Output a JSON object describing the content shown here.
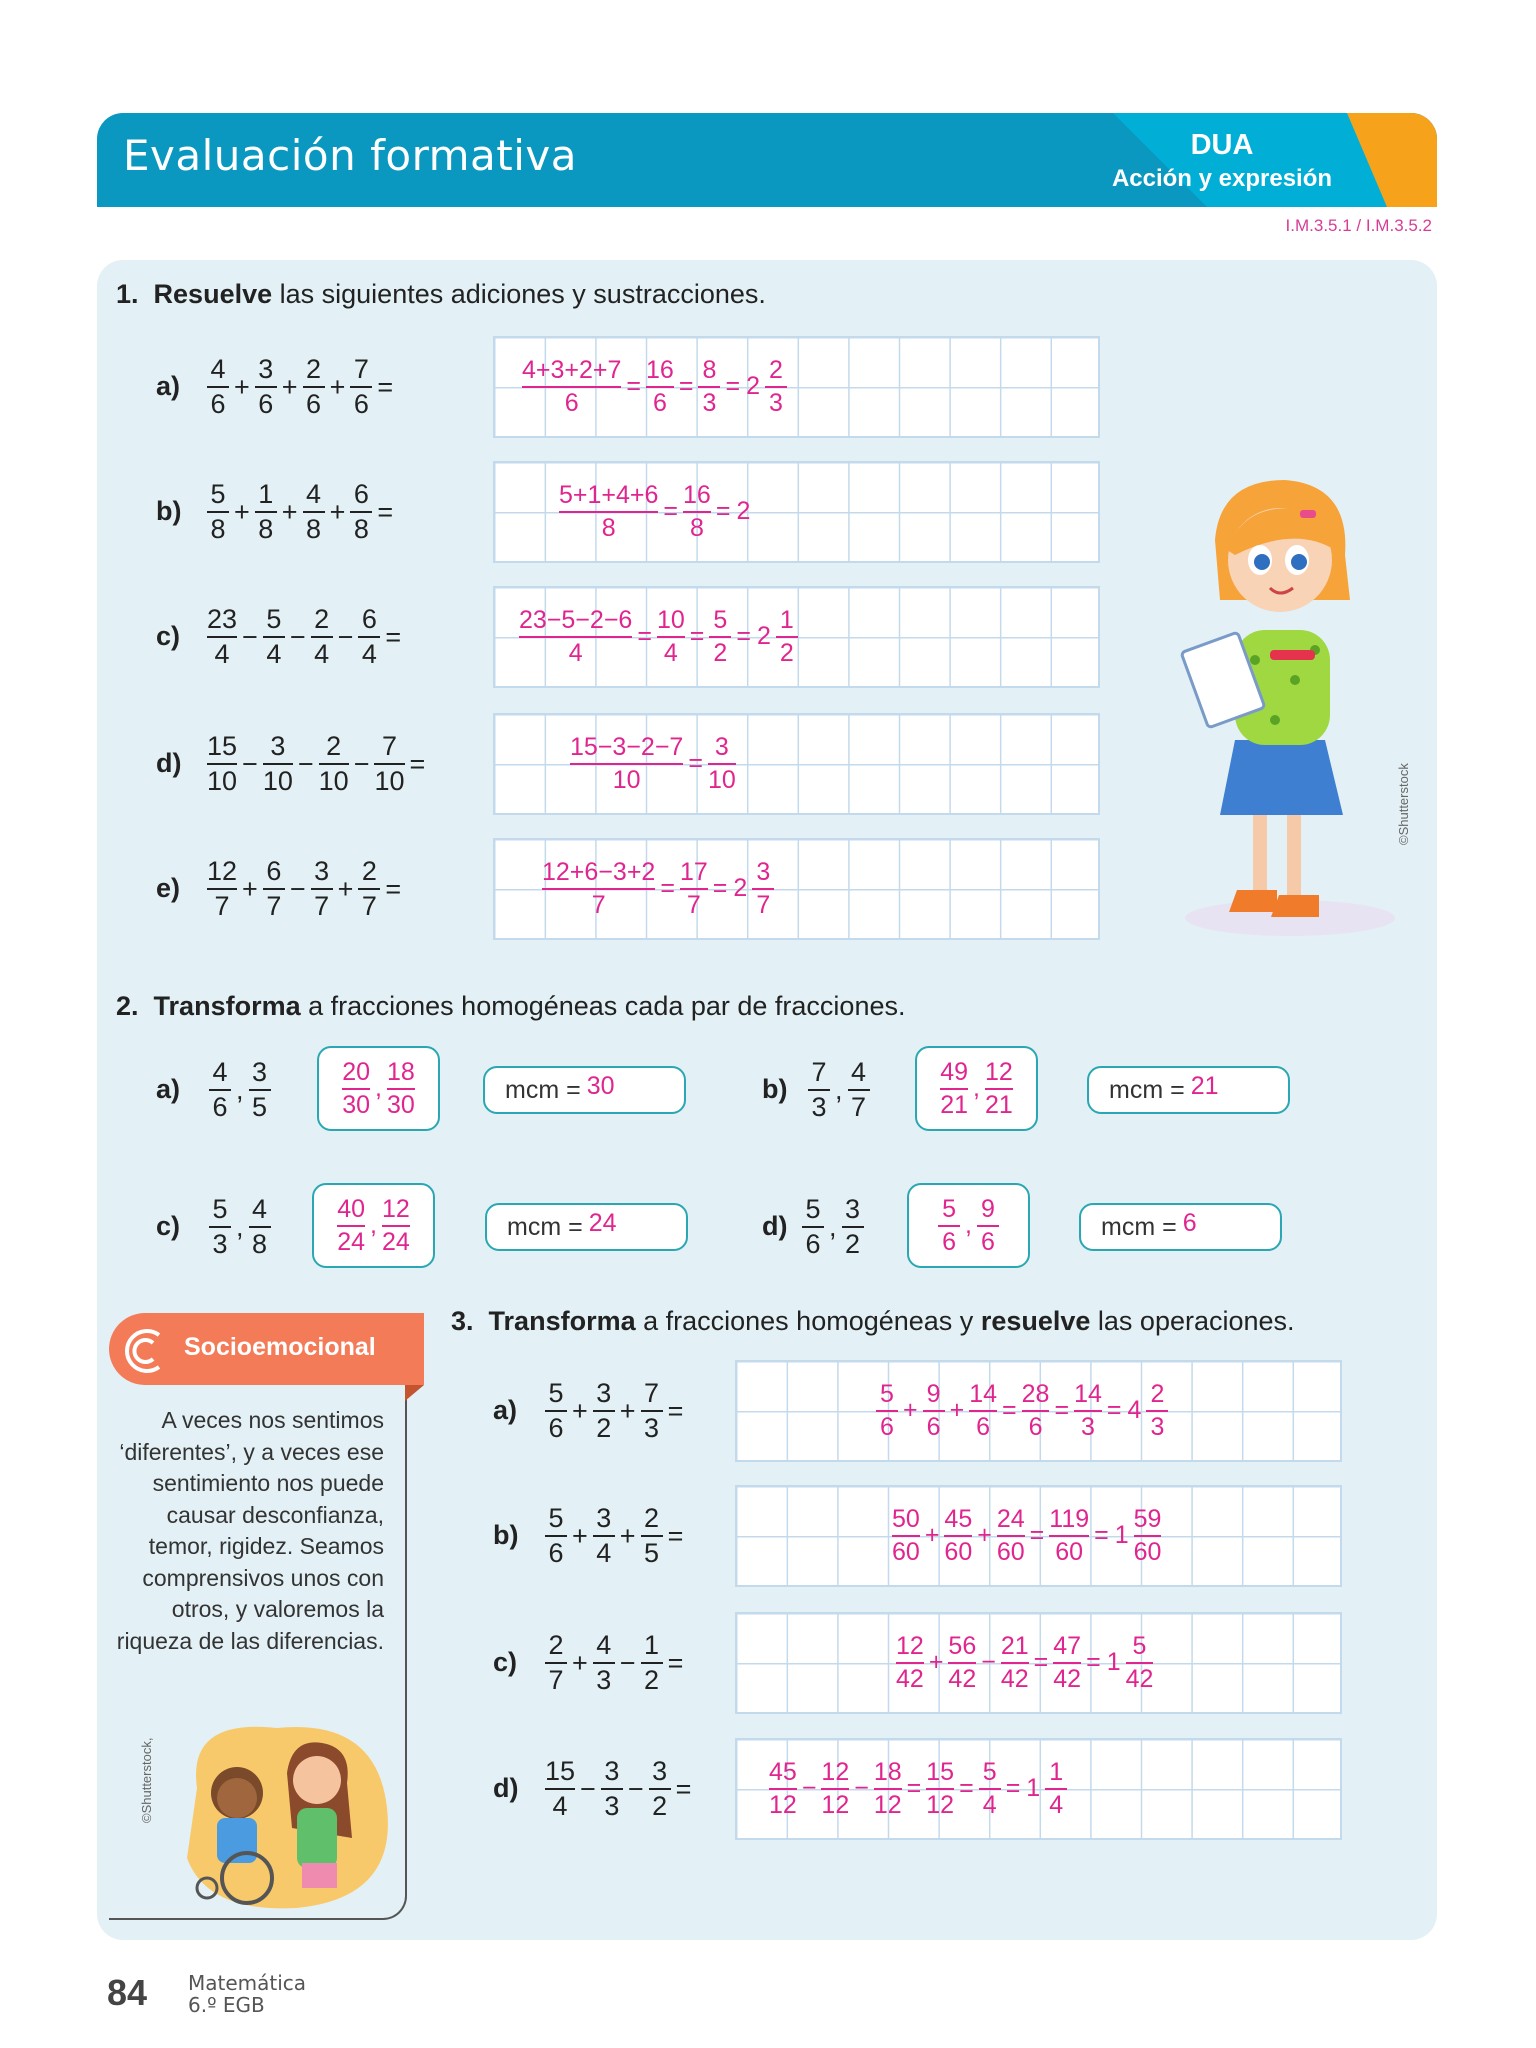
{
  "header": {
    "title": "Evaluación formativa",
    "badge": "DUA",
    "badge_sub": "Acción y expresión",
    "codes": "I.M.3.5.1 / I.M.3.5.2"
  },
  "colors": {
    "header": "#0a98c0",
    "header_light": "#00aed6",
    "accent_orange": "#f7a21b",
    "answer_pink": "#e0258f",
    "panel": "#e3f1f6",
    "socio": "#f47b57"
  },
  "q1": {
    "number": "1.",
    "bold": "Resuelve",
    "rest": " las siguientes adiciones y sustracciones.",
    "items": [
      {
        "label": "a)",
        "expr": [
          "4|6",
          "+",
          "3|6",
          "+",
          "2|6",
          "+",
          "7|6",
          "="
        ],
        "answer": [
          "4+3+2+7|6",
          "=",
          "16|6",
          "=",
          "8|3",
          "=",
          "2",
          "2|3"
        ]
      },
      {
        "label": "b)",
        "expr": [
          "5|8",
          "+",
          "1|8",
          "+",
          "4|8",
          "+",
          "6|8",
          "="
        ],
        "answer": [
          "5+1+4+6|8",
          "=",
          "16|8",
          "=",
          "2"
        ]
      },
      {
        "label": "c)",
        "expr": [
          "23|4",
          "−",
          "5|4",
          "−",
          "2|4",
          "−",
          "6|4",
          "="
        ],
        "answer": [
          "23−5−2−6|4",
          "=",
          "10|4",
          "=",
          "5|2",
          "=",
          "2",
          "1|2"
        ]
      },
      {
        "label": "d)",
        "expr": [
          "15|10",
          "−",
          "3|10",
          "−",
          "2|10",
          "−",
          "7|10",
          "="
        ],
        "answer": [
          "15−3−2−7|10",
          "=",
          "3|10"
        ]
      },
      {
        "label": "e)",
        "expr": [
          "12|7",
          "+",
          "6|7",
          "−",
          "3|7",
          "+",
          "2|7",
          "="
        ],
        "answer": [
          "12+6−3+2|7",
          "=",
          "17|7",
          "=",
          "2",
          "3|7"
        ]
      }
    ]
  },
  "q2": {
    "number": "2.",
    "bold": "Transforma",
    "rest": " a fracciones homogéneas cada par de fracciones.",
    "mcm_label": "mcm =",
    "items": [
      {
        "label": "a)",
        "expr": [
          "4|6",
          ",",
          "3|5"
        ],
        "answer": [
          "20|30",
          ",",
          "18|30"
        ],
        "mcm": "30"
      },
      {
        "label": "b)",
        "expr": [
          "7|3",
          ",",
          "4|7"
        ],
        "answer": [
          "49|21",
          ",",
          "12|21"
        ],
        "mcm": "21"
      },
      {
        "label": "c)",
        "expr": [
          "5|3",
          ",",
          "4|8"
        ],
        "answer": [
          "40|24",
          ",",
          "12|24"
        ],
        "mcm": "24"
      },
      {
        "label": "d)",
        "expr": [
          "5|6",
          ",",
          "3|2"
        ],
        "answer": [
          "5|6",
          ",",
          "9|6"
        ],
        "mcm": "6"
      }
    ]
  },
  "q3": {
    "number": "3.",
    "bold1": "Transforma",
    "mid": " a fracciones homogéneas y ",
    "bold2": "resuelve",
    "rest": " las operaciones.",
    "items": [
      {
        "label": "a)",
        "expr": [
          "5|6",
          "+",
          "3|2",
          "+",
          "7|3",
          "="
        ],
        "answer": [
          "5|6",
          "+",
          "9|6",
          "+",
          "14|6",
          "=",
          "28|6",
          "=",
          "14|3",
          "=",
          "4",
          "2|3"
        ]
      },
      {
        "label": "b)",
        "expr": [
          "5|6",
          "+",
          "3|4",
          "+",
          "2|5",
          "="
        ],
        "answer": [
          "50|60",
          "+",
          "45|60",
          "+",
          "24|60",
          "=",
          "119|60",
          "=",
          "1",
          "59|60"
        ]
      },
      {
        "label": "c)",
        "expr": [
          "2|7",
          "+",
          "4|3",
          "−",
          "1|2",
          "="
        ],
        "answer": [
          "12|42",
          "+",
          "56|42",
          "−",
          "21|42",
          "=",
          "47|42",
          "=",
          "1",
          "5|42"
        ]
      },
      {
        "label": "d)",
        "expr": [
          "15|4",
          "−",
          "3|3",
          "−",
          "3|2",
          "="
        ],
        "answer": [
          "45|12",
          "−",
          "12|12",
          "−",
          "18|12",
          "=",
          "15|12",
          "=",
          "5|4",
          "=",
          "1",
          "1|4"
        ]
      }
    ]
  },
  "socio": {
    "title": "Socioemocional",
    "text": "A veces nos sentimos ‘diferentes’, y a veces ese sentimiento nos puede causar desconfianza, temor, rigidez. Seamos comprensivos unos con otros, y valoremos la riqueza de las diferencias.",
    "credit": "©Shutterstock,"
  },
  "illustration_credit": "©Shutterstock",
  "footer": {
    "page": "84",
    "subject": "Matemática",
    "grade": "6.º EGB"
  }
}
